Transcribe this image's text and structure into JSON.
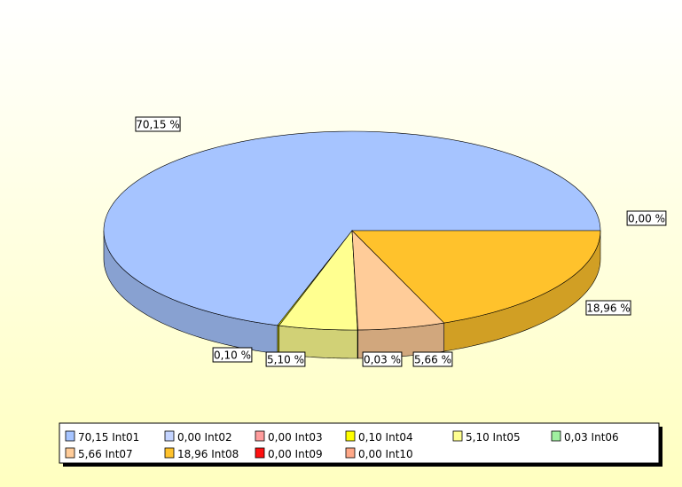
{
  "chart_data": {
    "type": "pie3d",
    "categories": [
      "Int01",
      "Int02",
      "Int03",
      "Int04",
      "Int05",
      "Int06",
      "Int07",
      "Int08",
      "Int09",
      "Int10"
    ],
    "values": [
      70.15,
      0.0,
      0.0,
      0.1,
      5.1,
      0.03,
      5.66,
      18.96,
      0.0,
      0.0
    ],
    "value_labels": [
      "70,15 %",
      null,
      null,
      "0,10 %",
      "5,10 %",
      "0,03 %",
      "5,66 %",
      "18,96 %",
      null,
      "0,00 %"
    ],
    "legend_labels": [
      "70,15",
      "0,00",
      "0,00",
      "0,10",
      "5,10",
      "0,03",
      "5,66",
      "18,96",
      "0,00",
      "0,00"
    ],
    "colors": [
      "#a6c4ff",
      "#c4d4ff",
      "#ff9c9c",
      "#ffff00",
      "#ffff90",
      "#a0f0a0",
      "#ffcc99",
      "#ffc22c",
      "#ff1010",
      "#ffa888"
    ]
  }
}
